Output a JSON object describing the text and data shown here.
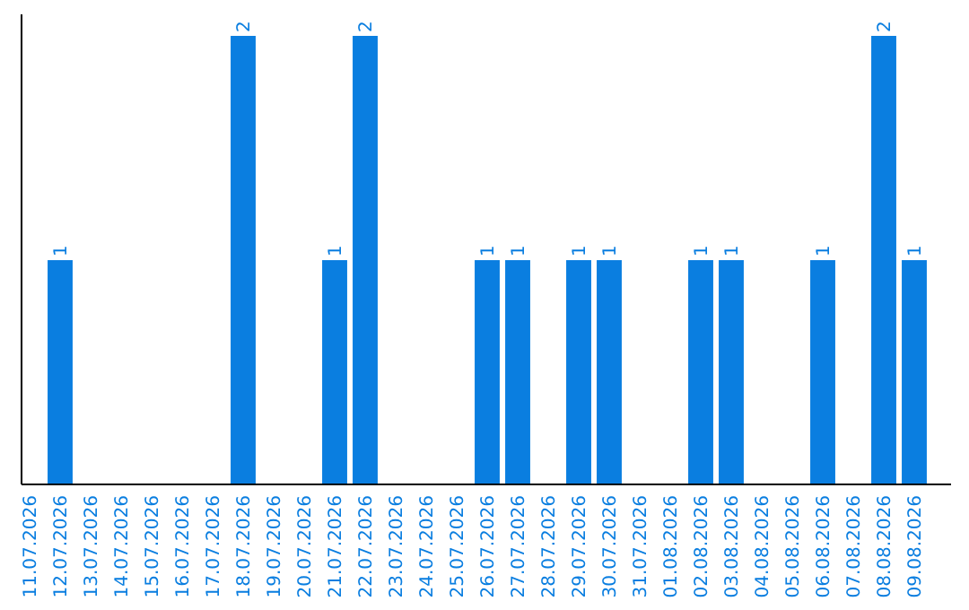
{
  "chart_data": {
    "type": "bar",
    "categories": [
      "11.07.2026",
      "12.07.2026",
      "13.07.2026",
      "14.07.2026",
      "15.07.2026",
      "16.07.2026",
      "17.07.2026",
      "18.07.2026",
      "19.07.2026",
      "20.07.2026",
      "21.07.2026",
      "22.07.2026",
      "23.07.2026",
      "24.07.2026",
      "25.07.2026",
      "26.07.2026",
      "27.07.2026",
      "28.07.2026",
      "29.07.2026",
      "30.07.2026",
      "31.07.2026",
      "01.08.2026",
      "02.08.2026",
      "03.08.2026",
      "04.08.2026",
      "05.08.2026",
      "06.08.2026",
      "07.08.2026",
      "08.08.2026",
      "09.08.2026"
    ],
    "values": [
      0,
      1,
      0,
      0,
      0,
      0,
      0,
      2,
      0,
      0,
      1,
      2,
      0,
      0,
      0,
      1,
      1,
      0,
      1,
      1,
      0,
      0,
      1,
      1,
      0,
      0,
      1,
      0,
      2,
      1
    ],
    "value_labels": [
      null,
      "1",
      null,
      null,
      null,
      null,
      null,
      "2",
      null,
      null,
      "1",
      "2",
      null,
      null,
      null,
      "1",
      "1",
      null,
      "1",
      "1",
      null,
      null,
      "1",
      "1",
      null,
      null,
      "1",
      null,
      "2",
      "1"
    ],
    "color": "#0a7ee0"
  }
}
